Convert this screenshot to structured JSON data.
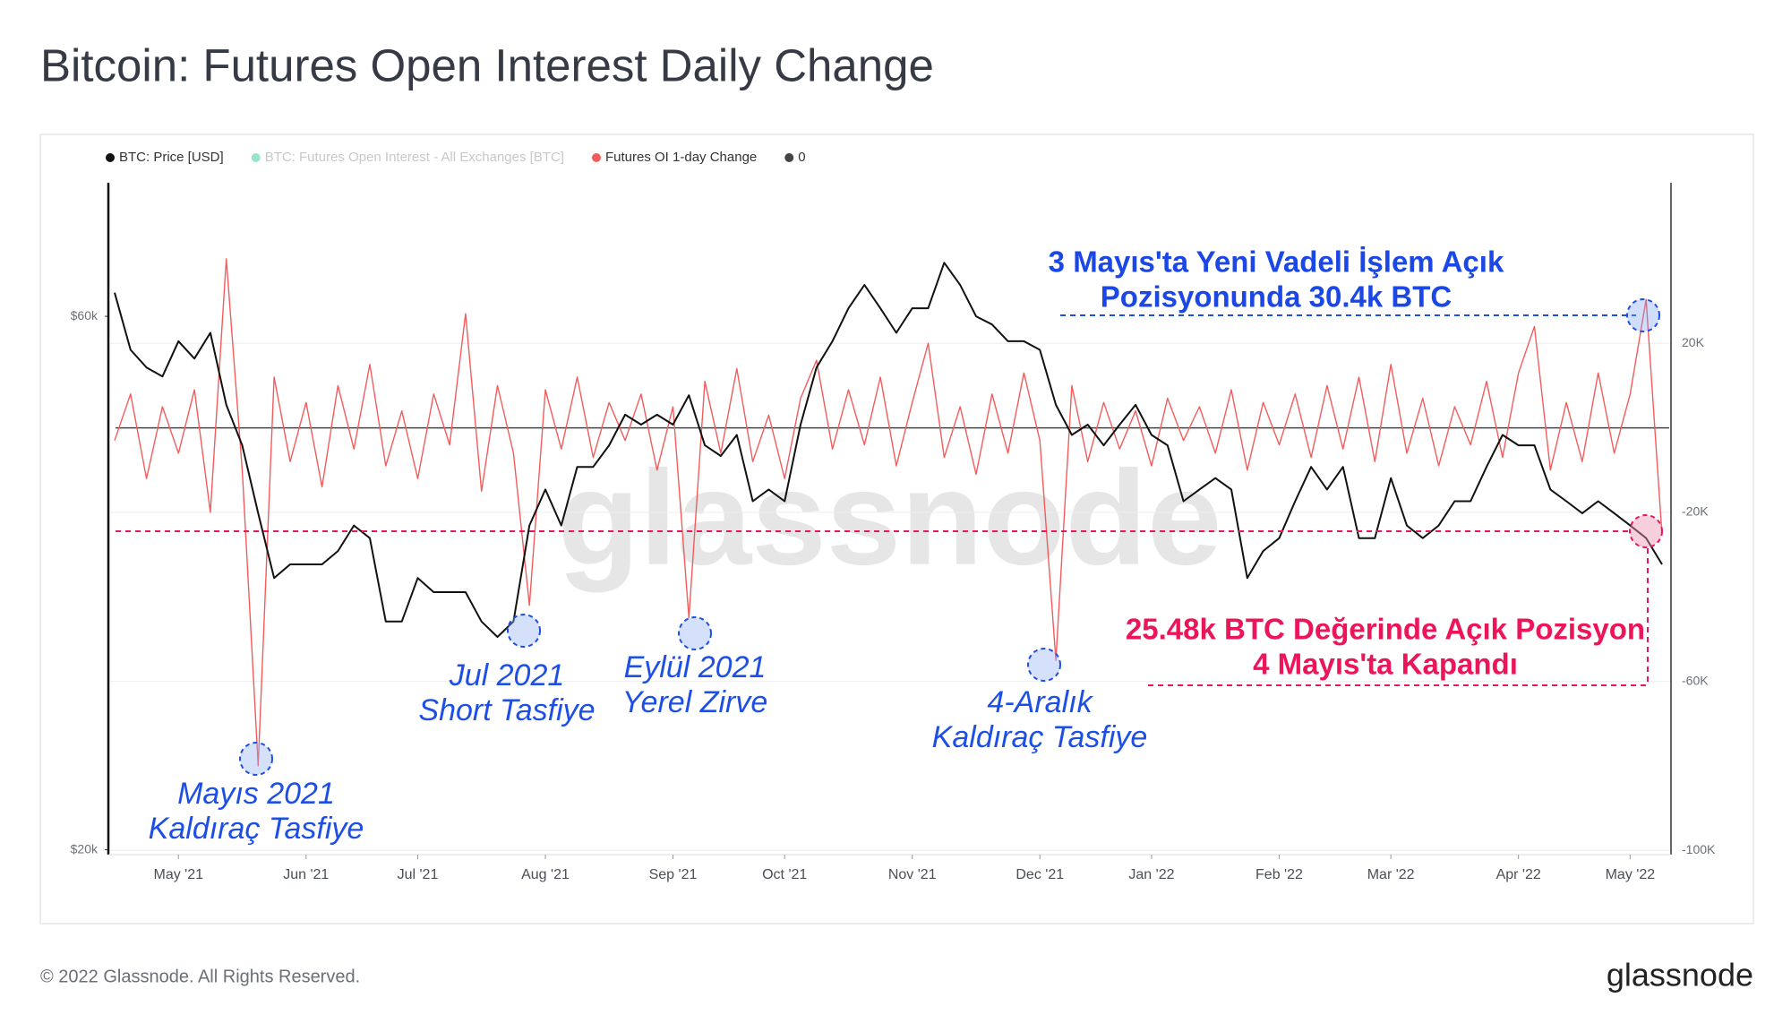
{
  "title": "Bitcoin: Futures Open Interest Daily Change",
  "chart_data": {
    "type": "line",
    "categories": [
      null,
      null,
      null,
      null,
      "May '21",
      null,
      null,
      null,
      null,
      null,
      null,
      null,
      "Jun '21",
      null,
      null,
      null,
      null,
      null,
      null,
      "Jul '21",
      null,
      null,
      null,
      null,
      null,
      null,
      null,
      "Aug '21",
      null,
      null,
      null,
      null,
      null,
      null,
      null,
      "Sep '21",
      null,
      null,
      null,
      null,
      null,
      null,
      "Oct '21",
      null,
      null,
      null,
      null,
      null,
      null,
      null,
      "Nov '21",
      null,
      null,
      null,
      null,
      null,
      null,
      null,
      "Dec '21",
      null,
      null,
      null,
      null,
      null,
      null,
      "Jan '22",
      null,
      null,
      null,
      null,
      null,
      null,
      null,
      "Feb '22",
      null,
      null,
      null,
      null,
      null,
      null,
      "Mar '22",
      null,
      null,
      null,
      null,
      null,
      null,
      null,
      "Apr '22",
      null,
      null,
      null,
      null,
      null,
      null,
      "May '22",
      null,
      null
    ],
    "series": [
      {
        "name": "BTC: Price [USD]",
        "color": "#111111",
        "axis": "y",
        "values": [
          63000,
          56000,
          54000,
          53000,
          57000,
          55000,
          58000,
          50000,
          46000,
          40000,
          35000,
          36000,
          36000,
          36000,
          37000,
          39000,
          38000,
          32000,
          32000,
          35000,
          34000,
          34000,
          34000,
          32000,
          31000,
          32000,
          39000,
          42000,
          39000,
          44000,
          44000,
          46000,
          49000,
          48000,
          49000,
          48000,
          51000,
          46000,
          45000,
          47000,
          41000,
          42000,
          41000,
          48000,
          54000,
          57000,
          61000,
          64000,
          61000,
          58000,
          61000,
          61000,
          67000,
          64000,
          60000,
          59000,
          57000,
          57000,
          56000,
          50000,
          47000,
          48000,
          46000,
          48000,
          50000,
          47000,
          46000,
          41000,
          42000,
          43000,
          42000,
          35000,
          37000,
          38000,
          41000,
          44000,
          42000,
          44000,
          38000,
          38000,
          43000,
          39000,
          38000,
          39000,
          41000,
          41000,
          44000,
          47000,
          46000,
          46000,
          42000,
          41000,
          40000,
          41000,
          40000,
          39000,
          38000,
          36000
        ]
      },
      {
        "name": "Futures OI 1-day Change",
        "color": "#f25c5c",
        "axis": "y2",
        "values": [
          -3000,
          8000,
          -12000,
          5000,
          -6000,
          9000,
          -20000,
          40000,
          -10000,
          -80000,
          12000,
          -8000,
          6000,
          -14000,
          10000,
          -5000,
          15000,
          -9000,
          4000,
          -12000,
          8000,
          -4000,
          27000,
          -15000,
          10000,
          -6000,
          -42000,
          9000,
          -5000,
          12000,
          -7000,
          6000,
          -3000,
          8000,
          -10000,
          5000,
          -45000,
          11000,
          -6000,
          14000,
          -8000,
          3000,
          -12000,
          7000,
          16000,
          -5000,
          9000,
          -4000,
          12000,
          -9000,
          6000,
          20000,
          -7000,
          5000,
          -11000,
          8000,
          -6000,
          13000,
          -3000,
          -55000,
          10000,
          -8000,
          6000,
          -5000,
          4000,
          -9000,
          7000,
          -3000,
          5000,
          -6000,
          9000,
          -10000,
          6000,
          -4000,
          8000,
          -7000,
          10000,
          -5000,
          12000,
          -8000,
          15000,
          -6000,
          7000,
          -9000,
          5000,
          -4000,
          11000,
          -7000,
          13000,
          24000,
          -10000,
          6000,
          -8000,
          13000,
          -6000,
          8000,
          30400,
          -25480
        ]
      }
    ],
    "hidden_series": [
      {
        "name": "BTC: Futures Open Interest - All Exchanges [BTC]",
        "color": "#19c28b"
      }
    ],
    "reference_line": {
      "name": "0",
      "value": 0,
      "axis": "y2",
      "color": "#444444"
    },
    "log_scale_y": true,
    "ylim": [
      19800,
      79000
    ],
    "yticks": [
      {
        "value": 20000,
        "label": "$20k"
      },
      {
        "value": 60000,
        "label": "$60k"
      }
    ],
    "y2lim": [
      -101000,
      58000
    ],
    "y2ticks": [
      {
        "value": 20000,
        "label": "20K"
      },
      {
        "value": -20000,
        "label": "-20K"
      },
      {
        "value": -60000,
        "label": "-60K"
      },
      {
        "value": -100000,
        "label": "-100K"
      }
    ],
    "grid": true,
    "annotations": [
      {
        "lines": [
          "3 Mayıs'ta Yeni Vadeli İşlem Açık",
          "Pozisyonunda 30.4k BTC"
        ],
        "color": "#1a47e6"
      },
      {
        "lines": [
          "25.48k BTC Değerinde Açık Pozisyon",
          "4 Mayıs'ta Kapandı"
        ],
        "color": "#ec1559"
      },
      {
        "lines": [
          "Mayıs 2021",
          "Kaldıraç Tasfiye"
        ],
        "color": "#1d4fe6"
      },
      {
        "lines": [
          "Jul 2021",
          "Short Tasfiye"
        ],
        "color": "#1d4fe6"
      },
      {
        "lines": [
          "Eylül 2021",
          "Yerel Zirve"
        ],
        "color": "#1d4fe6"
      },
      {
        "lines": [
          "4-Aralık",
          "Kaldıraç Tasfiye"
        ],
        "color": "#1d4fe6"
      }
    ]
  },
  "watermark": "glassnode",
  "footer": {
    "copyright": "© 2022 Glassnode. All Rights Reserved.",
    "logo": "glassnode"
  }
}
